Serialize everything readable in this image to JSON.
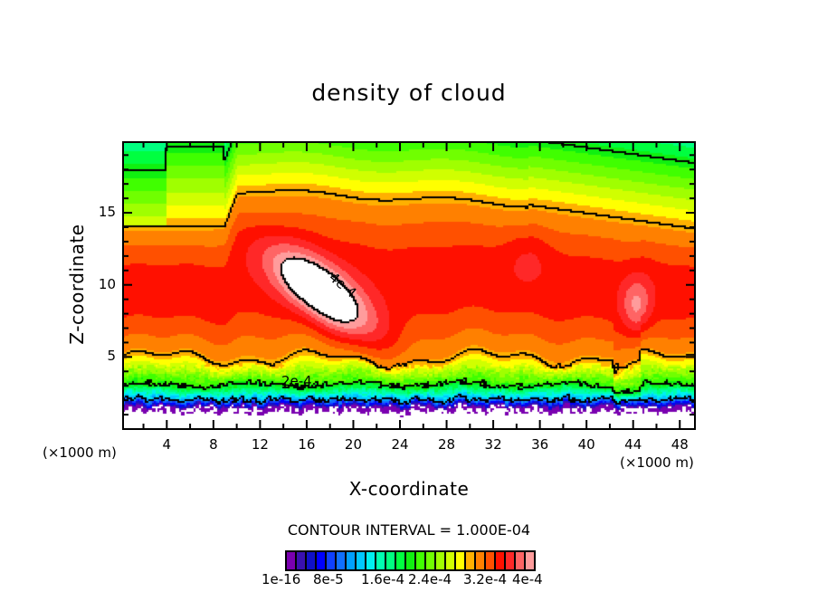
{
  "chart_data": {
    "type": "heatmap",
    "subtype": "filled-contour",
    "title": "density of cloud",
    "xlabel": "X-coordinate",
    "ylabel": "Z-coordinate",
    "x_unit": "(×1000 m)",
    "xlim": [
      0.25,
      49.3
    ],
    "ylim": [
      0,
      19.9
    ],
    "x_ticks": [
      4,
      8,
      12,
      16,
      20,
      24,
      28,
      32,
      36,
      40,
      44,
      48
    ],
    "y_ticks": [
      5,
      10,
      15
    ],
    "contour_interval_text": "CONTOUR INTERVAL = 1.000E-04",
    "contour_levels": [
      0.0001,
      0.0002,
      0.0003,
      0.0004
    ],
    "contour_labels": [
      "4e-4",
      "2e-4"
    ],
    "colorbar": {
      "colors": [
        "#7a00b0",
        "#3a10b0",
        "#1010c8",
        "#0000ff",
        "#1040ff",
        "#1070ff",
        "#00a0ff",
        "#00c8ff",
        "#00f0f0",
        "#00ffb0",
        "#00ff80",
        "#00ff40",
        "#10f010",
        "#40ff00",
        "#70ff00",
        "#a0ff00",
        "#d0ff00",
        "#ffff00",
        "#ffb000",
        "#ff8000",
        "#ff5000",
        "#ff1000",
        "#ff2828",
        "#ff6464",
        "#ff9c9c"
      ],
      "labels": [
        "1e-16",
        "8e-5",
        "1.6e-4",
        "2.4e-4",
        "3.2e-4",
        "4e-4"
      ],
      "range": [
        0,
        0.0004
      ]
    },
    "max_value_approx": 0.00042,
    "features": [
      {
        "name": "primary maximum",
        "x": 17,
        "z": 9.5,
        "value_approx": 0.00042
      },
      {
        "name": "secondary maximum",
        "x": 44,
        "z": 8.5,
        "value_approx": 0.00037
      }
    ]
  }
}
